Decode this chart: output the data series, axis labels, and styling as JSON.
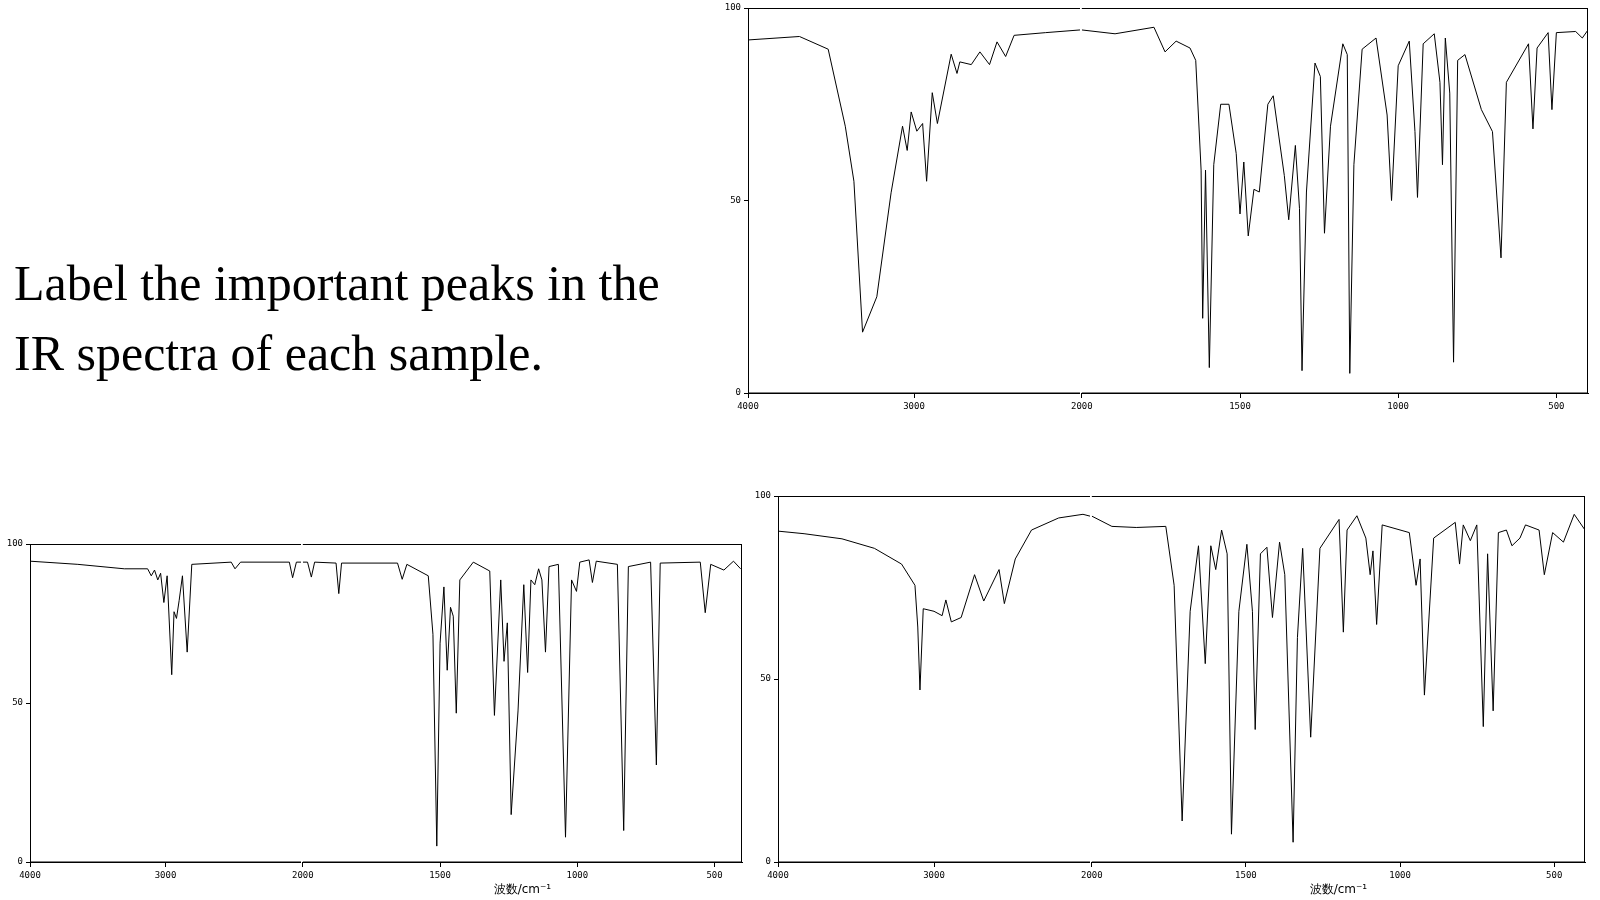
{
  "chart_data": [
    {
      "type": "other",
      "title": "Label the important peaks in the IR spectra of each sample."
    },
    {
      "type": "line",
      "color": "#000000",
      "marker": "none",
      "grid": false,
      "xlim": [
        4000,
        2000
      ],
      "xticks": [
        4000,
        3000
      ],
      "ylim": [
        0,
        100
      ],
      "yticks": [
        0,
        50,
        100
      ],
      "x": [
        4000,
        3690,
        3517,
        3414,
        3362,
        3310,
        3224,
        3138,
        3069,
        3041,
        3017,
        2983,
        2948,
        2924,
        2890,
        2859,
        2776,
        2741,
        2724,
        2655,
        2603,
        2545,
        2500,
        2448,
        2397,
        2207,
        2000
      ],
      "values": [
        91.7,
        92.6,
        89.3,
        69.3,
        55,
        15.8,
        25,
        52,
        69.3,
        63,
        73,
        68,
        70,
        55,
        78,
        70,
        88,
        83,
        86,
        85.3,
        88.6,
        85.3,
        91.2,
        87.4,
        92.9,
        93.6,
        94.3
      ]
    },
    {
      "type": "line",
      "color": "#000000",
      "marker": "none",
      "grid": false,
      "tick_labels": "x",
      "xlim": [
        2000,
        400
      ],
      "xticks": [
        2000,
        1500,
        1000,
        500
      ],
      "ylim": [
        0,
        100
      ],
      "yticks": [
        0,
        50,
        100
      ],
      "x": [
        2000,
        1895,
        1772,
        1737,
        1702,
        1658,
        1640,
        1623,
        1618,
        1609,
        1597,
        1583,
        1561,
        1535,
        1512,
        1500,
        1488,
        1474,
        1456,
        1439,
        1412,
        1395,
        1377,
        1360,
        1346,
        1325,
        1312,
        1304,
        1290,
        1263,
        1246,
        1233,
        1214,
        1175,
        1161,
        1153,
        1140,
        1114,
        1070,
        1035,
        1021,
        1000,
        965,
        947,
        939,
        921,
        886,
        868,
        860,
        851,
        837,
        825,
        812,
        789,
        737,
        702,
        675,
        658,
        588,
        574,
        561,
        526,
        514,
        500,
        439,
        418,
        400
      ],
      "values": [
        94.3,
        93.3,
        95,
        88.6,
        91.4,
        89.6,
        86.4,
        57.9,
        19.4,
        57.9,
        6.6,
        59.3,
        75,
        75,
        62.2,
        46.5,
        60,
        40.8,
        52.9,
        52.2,
        75,
        77.2,
        66.5,
        56.5,
        45,
        64.3,
        47.9,
        5.8,
        52.2,
        85.7,
        82.2,
        41.5,
        69.3,
        90.7,
        87.9,
        5.1,
        59.3,
        89.3,
        92.2,
        72.2,
        50,
        85,
        91.4,
        67.9,
        50.8,
        90.7,
        93.3,
        80.7,
        59.3,
        92.2,
        77.9,
        8,
        86.4,
        87.9,
        73.6,
        67.9,
        35.1,
        80.7,
        90.7,
        68.6,
        89.6,
        93.6,
        73.6,
        93.6,
        93.9,
        92.2,
        94.3
      ]
    },
    {
      "type": "line",
      "color": "#000000",
      "marker": "none",
      "grid": false,
      "xlim": [
        4000,
        2000
      ],
      "xticks": [
        4000,
        3000
      ],
      "ylim": [
        0,
        100
      ],
      "yticks": [
        0,
        50,
        100
      ],
      "x": [
        4000,
        3647,
        3304,
        3132,
        3105,
        3081,
        3057,
        3036,
        3012,
        2988,
        2954,
        2937,
        2919,
        2899,
        2875,
        2840,
        2806,
        2515,
        2487,
        2446,
        2086,
        2062,
        2034,
        2000
      ],
      "values": [
        94.6,
        93.6,
        92.2,
        92.2,
        90,
        91.8,
        88.7,
        90.8,
        81.6,
        90,
        58.9,
        78.7,
        76.6,
        82.3,
        90,
        66,
        93.6,
        94.3,
        92.2,
        94.3,
        94.3,
        89.4,
        94.3,
        94.3
      ]
    },
    {
      "type": "line",
      "color": "#000000",
      "marker": "none",
      "grid": false,
      "tick_labels": "x",
      "xlabel": "波数/cm⁻¹",
      "xlim": [
        2000,
        400
      ],
      "xticks": [
        2000,
        1500,
        1000,
        500
      ],
      "ylim": [
        0,
        100
      ],
      "yticks": [
        0,
        50,
        100
      ],
      "x": [
        2000,
        1983,
        1969,
        1957,
        1879,
        1869,
        1859,
        1655,
        1638,
        1621,
        1543,
        1526,
        1512,
        1500,
        1486,
        1474,
        1462,
        1452,
        1441,
        1428,
        1379,
        1319,
        1302,
        1279,
        1267,
        1255,
        1241,
        1216,
        1195,
        1181,
        1169,
        1155,
        1141,
        1129,
        1116,
        1103,
        1069,
        1043,
        1021,
        1003,
        991,
        957,
        945,
        931,
        854,
        831,
        814,
        733,
        712,
        698,
        552,
        534,
        514,
        466,
        431,
        405
      ],
      "values": [
        94.3,
        94.3,
        89.6,
        94.3,
        94,
        84.4,
        94,
        94,
        88.9,
        93.6,
        90,
        71.6,
        5,
        68.8,
        86.5,
        60.3,
        80.1,
        77.3,
        46.8,
        88.7,
        94.3,
        91.5,
        46.1,
        88.7,
        63.1,
        75.2,
        14.9,
        47.5,
        87.2,
        59.6,
        88.7,
        87.2,
        92.2,
        88.7,
        66,
        92.9,
        93.6,
        7.8,
        88.7,
        85.1,
        94.3,
        95,
        87.9,
        94.6,
        93.6,
        9.9,
        92.9,
        94.3,
        30.5,
        94,
        94.3,
        78.4,
        93.6,
        91.8,
        94.6,
        92.2
      ]
    },
    {
      "type": "line",
      "color": "#000000",
      "marker": "none",
      "grid": false,
      "xlim": [
        4000,
        2000
      ],
      "xticks": [
        4000,
        3000
      ],
      "ylim": [
        0,
        100
      ],
      "yticks": [
        0,
        50,
        100
      ],
      "x": [
        4000,
        3833,
        3590,
        3382,
        3208,
        3122,
        3104,
        3090,
        3069,
        3000,
        2948,
        2924,
        2889,
        2826,
        2740,
        2681,
        2583,
        2549,
        2479,
        2375,
        2201,
        2045,
        2000
      ],
      "values": [
        90.4,
        89.7,
        88.3,
        85.7,
        81.4,
        75.6,
        64.2,
        47,
        69.2,
        68.5,
        67.3,
        71.6,
        65.6,
        66.8,
        78.5,
        71.3,
        79.9,
        70.6,
        82.8,
        90.7,
        94,
        95,
        94.5
      ]
    },
    {
      "type": "line",
      "color": "#000000",
      "marker": "none",
      "grid": false,
      "tick_labels": "x",
      "xlabel": "波数/cm⁻¹",
      "xlim": [
        2000,
        400
      ],
      "xticks": [
        2000,
        1500,
        1000,
        500
      ],
      "ylim": [
        0,
        100
      ],
      "yticks": [
        0,
        50,
        100
      ],
      "x": [
        2000,
        1935,
        1856,
        1760,
        1733,
        1707,
        1681,
        1654,
        1632,
        1614,
        1598,
        1579,
        1561,
        1547,
        1523,
        1497,
        1479,
        1470,
        1453,
        1432,
        1414,
        1391,
        1374,
        1347,
        1333,
        1316,
        1290,
        1260,
        1198,
        1184,
        1172,
        1140,
        1111,
        1097,
        1088,
        1076,
        1058,
        970,
        948,
        935,
        921,
        891,
        821,
        807,
        795,
        772,
        751,
        730,
        716,
        698,
        681,
        655,
        637,
        611,
        593,
        549,
        532,
        505,
        470,
        435,
        400
      ],
      "values": [
        94.5,
        91.7,
        91.4,
        91.7,
        75.6,
        11.2,
        68.5,
        86.4,
        54.2,
        86.4,
        79.9,
        90.7,
        84.2,
        7.6,
        68.5,
        86.8,
        68.5,
        36.2,
        84.2,
        86,
        66.8,
        87.4,
        78.5,
        5.4,
        61.3,
        85.7,
        34.1,
        85.7,
        93.6,
        62.8,
        90.7,
        94.6,
        88.5,
        78.5,
        85,
        64.9,
        92.1,
        90,
        75.6,
        82.8,
        45.6,
        88.5,
        92.8,
        81.4,
        92.1,
        87.8,
        92.1,
        37,
        84.2,
        41.3,
        90,
        90.7,
        86.4,
        88.5,
        92.1,
        90.7,
        78.5,
        90,
        87.4,
        95,
        90.7
      ]
    }
  ]
}
